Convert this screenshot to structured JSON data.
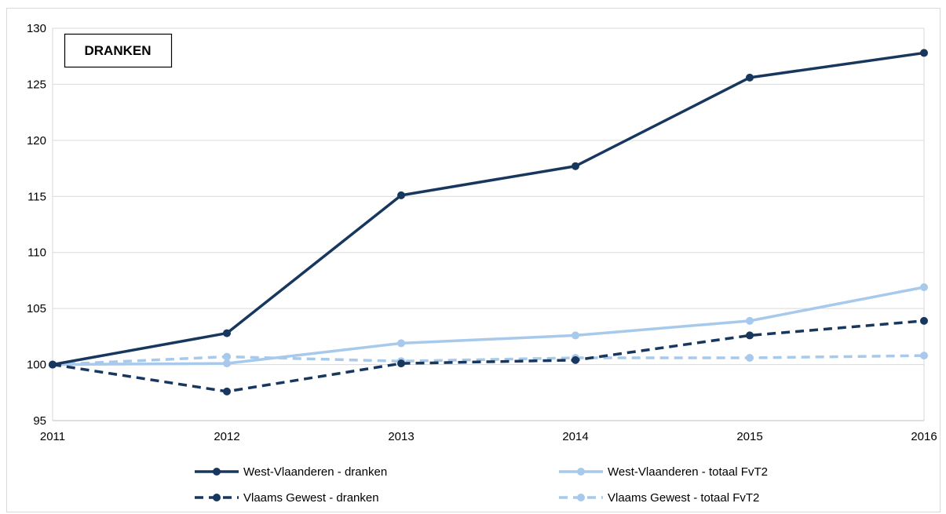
{
  "chart_data": {
    "type": "line",
    "title": "DRANKEN",
    "x": [
      "2011",
      "2012",
      "2013",
      "2014",
      "2015",
      "2016"
    ],
    "ylim": [
      95,
      130
    ],
    "yticks": [
      95,
      100,
      105,
      110,
      115,
      120,
      125,
      130
    ],
    "grid": "horizontal",
    "legend_position": "bottom",
    "series": [
      {
        "name": "West-Vlaanderen - dranken",
        "values": [
          100,
          102.8,
          115.1,
          117.7,
          125.6,
          127.8
        ],
        "color": "#17375e",
        "dash": "solid"
      },
      {
        "name": "West-Vlaanderen - totaal FvT2",
        "values": [
          100,
          100.1,
          101.9,
          102.6,
          103.9,
          106.9
        ],
        "color": "#a6c9ec",
        "dash": "solid"
      },
      {
        "name": "Vlaams Gewest - dranken",
        "values": [
          100,
          97.6,
          100.1,
          100.4,
          102.6,
          103.9
        ],
        "color": "#17375e",
        "dash": "dashed"
      },
      {
        "name": "Vlaams Gewest - totaal FvT2",
        "values": [
          100,
          100.7,
          100.3,
          100.6,
          100.6,
          100.8
        ],
        "color": "#a6c9ec",
        "dash": "dashed"
      }
    ]
  }
}
